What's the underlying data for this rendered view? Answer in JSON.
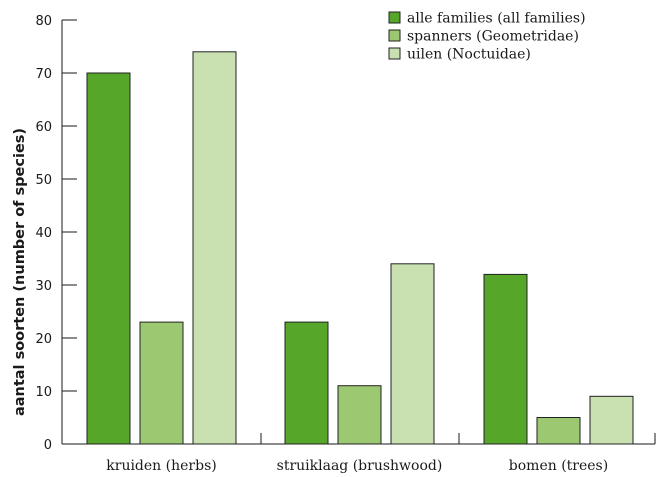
{
  "chart_data": {
    "type": "bar",
    "ylabel": "aantal soorten (number of species)",
    "xlabel": "",
    "ylim": [
      0,
      80
    ],
    "yticks": [
      "0",
      "10",
      "20",
      "30",
      "40",
      "50",
      "60",
      "70",
      "80"
    ],
    "categories": [
      "kruiden (herbs)",
      "struiklaag (brushwood)",
      "bomen (trees)"
    ],
    "series": [
      {
        "name": "alle families (all families)",
        "color": "#56a62a",
        "values": [
          70,
          23,
          32
        ]
      },
      {
        "name": "spanners (Geometridae)",
        "color": "#9dc872",
        "values": [
          23,
          11,
          5
        ]
      },
      {
        "name": "uilen (Noctuidae)",
        "color": "#c9e0b0",
        "values": [
          74,
          34,
          9
        ]
      }
    ],
    "legend_position": "top-right",
    "grid": false
  }
}
